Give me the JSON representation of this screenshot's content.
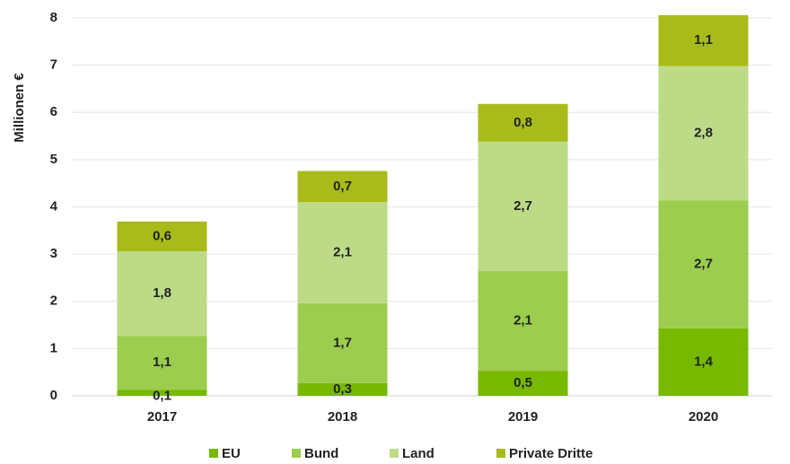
{
  "chart_data": {
    "type": "stacked_bar",
    "y_label": "Millionen €",
    "categories": [
      "2017",
      "2018",
      "2019",
      "2020"
    ],
    "series": [
      {
        "name": "EU",
        "color": "#76b900",
        "values": [
          0.13,
          0.27,
          0.53,
          1.43
        ],
        "value_labels": [
          "0,1",
          "0,3",
          "0,5",
          "1,4"
        ]
      },
      {
        "name": "Bund",
        "color": "#9ccd4e",
        "values": [
          1.14,
          1.69,
          2.11,
          2.71
        ],
        "value_labels": [
          "1,1",
          "1,7",
          "2,1",
          "2,7"
        ]
      },
      {
        "name": "Land",
        "color": "#bddb87",
        "values": [
          1.79,
          2.14,
          2.74,
          2.84
        ],
        "value_labels": [
          "1,8",
          "2,1",
          "2,7",
          "2,8"
        ]
      },
      {
        "name": "Private Dritte",
        "color": "#a8bb1a",
        "values": [
          0.63,
          0.66,
          0.8,
          1.08
        ],
        "value_labels": [
          "0,6",
          "0,7",
          "0,8",
          "1,1"
        ]
      }
    ],
    "ylim": [
      0,
      8
    ],
    "yticks": [
      0,
      1,
      2,
      3,
      4,
      5,
      6,
      7,
      8
    ],
    "grid": true,
    "legend": "bottom"
  }
}
